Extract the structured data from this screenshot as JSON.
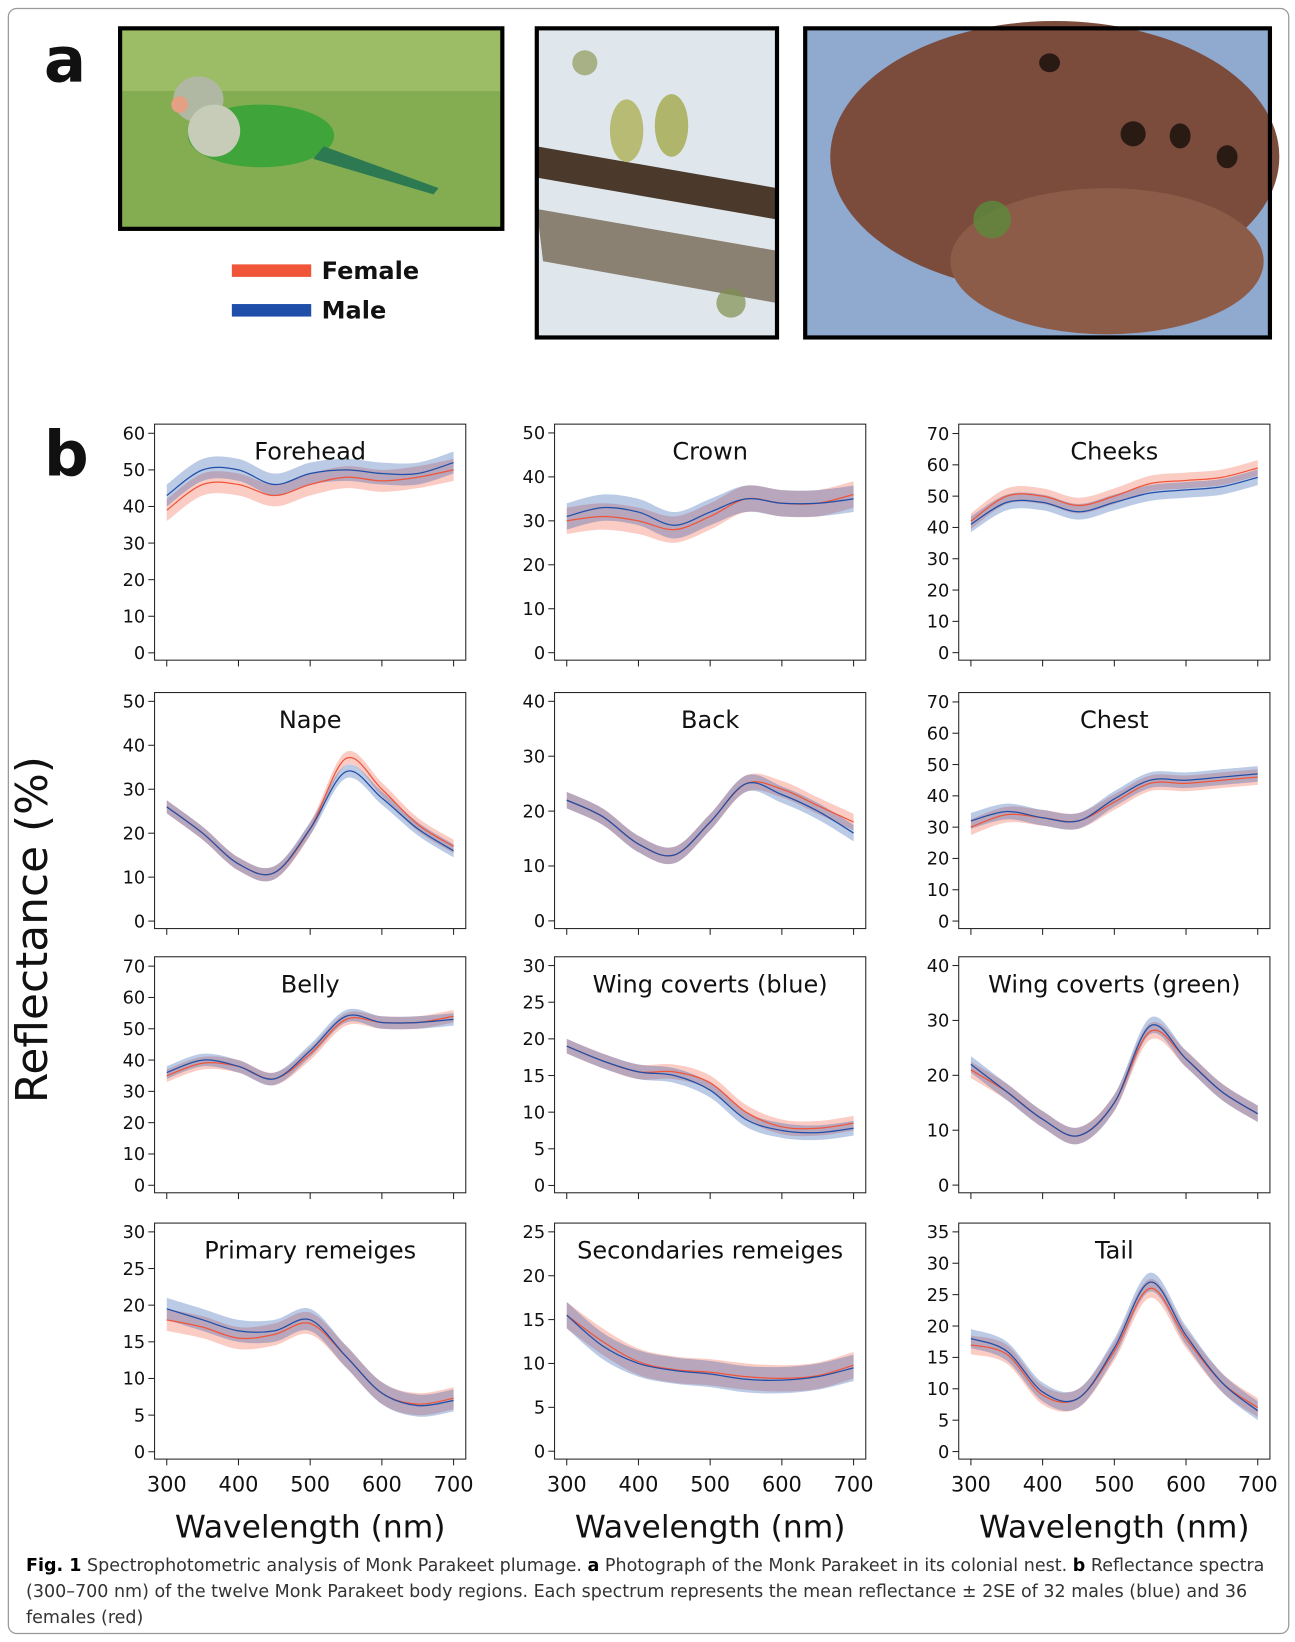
{
  "panel_labels": [
    "a",
    "b"
  ],
  "legend": [
    {
      "name": "Female",
      "color": "#f0553a"
    },
    {
      "name": "Male",
      "color": "#1f4fa8"
    }
  ],
  "y_label": "Reflectance (%)",
  "x_label": "Wavelength (nm)",
  "chart_data": [
    {
      "type": "line",
      "title": "Forehead",
      "x": [
        300,
        350,
        400,
        450,
        500,
        550,
        600,
        650,
        700
      ],
      "xlim": [
        283,
        717
      ],
      "xticks": [
        300,
        400,
        500,
        600,
        700
      ],
      "ylim": [
        -2,
        62.5
      ],
      "yticks": [
        0,
        10,
        20,
        30,
        40,
        50,
        60
      ],
      "series": [
        {
          "values": [
            39,
            46,
            46,
            43,
            46,
            48,
            47,
            48,
            50
          ],
          "errors": [
            3,
            3,
            3,
            3,
            3,
            3,
            3,
            3,
            3
          ]
        },
        {
          "values": [
            43,
            50,
            50,
            46,
            49,
            50,
            49,
            49,
            52
          ],
          "errors": [
            3,
            3,
            3,
            3,
            3,
            3,
            3,
            3,
            3
          ]
        }
      ]
    },
    {
      "type": "line",
      "title": "Crown",
      "x": [
        300,
        350,
        400,
        450,
        500,
        550,
        600,
        650,
        700
      ],
      "xlim": [
        283,
        717
      ],
      "xticks": [
        300,
        400,
        500,
        600,
        700
      ],
      "ylim": [
        -1.7,
        52
      ],
      "yticks": [
        0,
        10,
        20,
        30,
        40,
        50
      ],
      "series": [
        {
          "values": [
            30,
            31,
            30,
            28,
            31,
            35,
            34,
            34,
            36
          ],
          "errors": [
            3,
            3,
            3,
            3,
            3,
            3,
            3,
            3,
            3
          ]
        },
        {
          "values": [
            31,
            33,
            32,
            29,
            32,
            35,
            34,
            34,
            35
          ],
          "errors": [
            3,
            3,
            3,
            3,
            3,
            3,
            3,
            3,
            3
          ]
        }
      ]
    },
    {
      "type": "line",
      "title": "Cheeks",
      "x": [
        300,
        350,
        400,
        450,
        500,
        550,
        600,
        650,
        700
      ],
      "xlim": [
        283,
        717
      ],
      "xticks": [
        300,
        400,
        500,
        600,
        700
      ],
      "ylim": [
        -2.4,
        73
      ],
      "yticks": [
        0,
        10,
        20,
        30,
        40,
        50,
        60,
        70
      ],
      "series": [
        {
          "values": [
            42,
            50,
            50,
            47,
            50,
            54,
            55,
            56,
            59
          ],
          "errors": [
            2.5,
            2.5,
            2.5,
            2.5,
            2.5,
            2.5,
            2.5,
            2.5,
            2.5
          ]
        },
        {
          "values": [
            41,
            48,
            48,
            45,
            48,
            51,
            52,
            53,
            56
          ],
          "errors": [
            2.5,
            2.5,
            2.5,
            2.5,
            2.5,
            2.5,
            2.5,
            2.5,
            2.5
          ]
        }
      ]
    },
    {
      "type": "line",
      "title": "Nape",
      "x": [
        300,
        350,
        400,
        450,
        500,
        550,
        600,
        650,
        700
      ],
      "xlim": [
        283,
        717
      ],
      "xticks": [
        300,
        400,
        500,
        600,
        700
      ],
      "ylim": [
        -1.7,
        52
      ],
      "yticks": [
        0,
        10,
        20,
        30,
        40,
        50
      ],
      "series": [
        {
          "values": [
            26,
            20,
            13,
            11,
            21,
            37,
            30,
            22,
            17
          ],
          "errors": [
            1.5,
            1.5,
            1.5,
            1.5,
            1.5,
            1.5,
            1.5,
            1.5,
            1.5
          ]
        },
        {
          "values": [
            26,
            20,
            13,
            11,
            21,
            34,
            28,
            21,
            16
          ],
          "errors": [
            1.5,
            1.5,
            1.5,
            1.5,
            1.5,
            1.5,
            1.5,
            1.5,
            1.5
          ]
        }
      ]
    },
    {
      "type": "line",
      "title": "Back",
      "x": [
        300,
        350,
        400,
        450,
        500,
        550,
        600,
        650,
        700
      ],
      "xlim": [
        283,
        717
      ],
      "xticks": [
        300,
        400,
        500,
        600,
        700
      ],
      "ylim": [
        -1.4,
        41.6
      ],
      "yticks": [
        0,
        10,
        20,
        30,
        40
      ],
      "series": [
        {
          "values": [
            22,
            19,
            14,
            12,
            18,
            25,
            24,
            21,
            18
          ],
          "errors": [
            1.5,
            1.5,
            1.5,
            1.5,
            1.5,
            1.5,
            1.5,
            1.5,
            1.5
          ]
        },
        {
          "values": [
            22,
            19,
            14,
            12,
            18,
            25,
            23,
            20,
            16
          ],
          "errors": [
            1.5,
            1.5,
            1.5,
            1.5,
            1.5,
            1.5,
            1.5,
            1.5,
            1.5
          ]
        }
      ]
    },
    {
      "type": "line",
      "title": "Chest",
      "x": [
        300,
        350,
        400,
        450,
        500,
        550,
        600,
        650,
        700
      ],
      "xlim": [
        283,
        717
      ],
      "xticks": [
        300,
        400,
        500,
        600,
        700
      ],
      "ylim": [
        -2.4,
        73
      ],
      "yticks": [
        0,
        10,
        20,
        30,
        40,
        50,
        60,
        70
      ],
      "series": [
        {
          "values": [
            30,
            34,
            33,
            32,
            38,
            44,
            44,
            45,
            46
          ],
          "errors": [
            2.5,
            2.5,
            2.5,
            2.5,
            2.5,
            2.5,
            2.5,
            2.5,
            2.5
          ]
        },
        {
          "values": [
            32,
            35,
            33,
            32,
            39,
            45,
            45,
            46,
            47
          ],
          "errors": [
            2.5,
            2.5,
            2.5,
            2.5,
            2.5,
            2.5,
            2.5,
            2.5,
            2.5
          ]
        }
      ]
    },
    {
      "type": "line",
      "title": "Belly",
      "x": [
        300,
        350,
        400,
        450,
        500,
        550,
        600,
        650,
        700
      ],
      "xlim": [
        283,
        717
      ],
      "xticks": [
        300,
        400,
        500,
        600,
        700
      ],
      "ylim": [
        -2.4,
        73
      ],
      "yticks": [
        0,
        10,
        20,
        30,
        40,
        50,
        60,
        70
      ],
      "series": [
        {
          "values": [
            35,
            39,
            38,
            34,
            42,
            53,
            52,
            52,
            54
          ],
          "errors": [
            2,
            2,
            2,
            2,
            2,
            2,
            2,
            2,
            2
          ]
        },
        {
          "values": [
            36,
            40,
            38,
            34,
            43,
            54,
            52,
            52,
            53
          ],
          "errors": [
            2,
            2,
            2,
            2,
            2,
            2,
            2,
            2,
            2
          ]
        }
      ]
    },
    {
      "type": "line",
      "title": "Wing coverts (blue)",
      "x": [
        300,
        350,
        400,
        450,
        500,
        550,
        600,
        650,
        700
      ],
      "xlim": [
        283,
        717
      ],
      "xticks": [
        300,
        400,
        500,
        600,
        700
      ],
      "ylim": [
        -1,
        31.2
      ],
      "yticks": [
        0,
        5,
        10,
        15,
        20,
        25,
        30
      ],
      "series": [
        {
          "values": [
            19,
            17,
            15.5,
            15.5,
            14,
            10,
            8,
            7.8,
            8.5
          ],
          "errors": [
            1,
            1,
            1,
            1,
            1,
            1,
            1,
            1,
            1
          ]
        },
        {
          "values": [
            19,
            17,
            15.5,
            15,
            13,
            9,
            7.5,
            7.2,
            7.8
          ],
          "errors": [
            1,
            1,
            1,
            1,
            1,
            1,
            1,
            1,
            1
          ]
        }
      ]
    },
    {
      "type": "line",
      "title": "Wing coverts (green)",
      "x": [
        300,
        350,
        400,
        450,
        500,
        550,
        600,
        650,
        700
      ],
      "xlim": [
        283,
        717
      ],
      "xticks": [
        300,
        400,
        500,
        600,
        700
      ],
      "ylim": [
        -1.4,
        41.6
      ],
      "yticks": [
        0,
        10,
        20,
        30,
        40
      ],
      "series": [
        {
          "values": [
            21,
            17,
            12,
            9,
            15,
            28,
            23,
            17,
            13
          ],
          "errors": [
            1.5,
            1.5,
            1.5,
            1.5,
            1.5,
            1.5,
            1.5,
            1.5,
            1.5
          ]
        },
        {
          "values": [
            22,
            17,
            12,
            9,
            15,
            29,
            23,
            17,
            13
          ],
          "errors": [
            1.5,
            1.5,
            1.5,
            1.5,
            1.5,
            1.5,
            1.5,
            1.5,
            1.5
          ]
        }
      ]
    },
    {
      "type": "line",
      "title": "Primary remeiges",
      "x": [
        300,
        350,
        400,
        450,
        500,
        550,
        600,
        650,
        700
      ],
      "xlim": [
        283,
        717
      ],
      "xticks": [
        300,
        400,
        500,
        600,
        700
      ],
      "ylim": [
        -1,
        31.2
      ],
      "yticks": [
        0,
        5,
        10,
        15,
        20,
        25,
        30
      ],
      "series": [
        {
          "values": [
            18,
            17,
            15.5,
            16,
            17.5,
            13,
            8,
            6.5,
            7.3
          ],
          "errors": [
            1.5,
            1.5,
            1.5,
            1.5,
            1.5,
            1.5,
            1.5,
            1.5,
            1.5
          ]
        },
        {
          "values": [
            19.5,
            18,
            16.5,
            16.5,
            18,
            13,
            8,
            6.3,
            7
          ],
          "errors": [
            1.5,
            1.5,
            1.5,
            1.5,
            1.5,
            1.5,
            1.5,
            1.5,
            1.5
          ]
        }
      ]
    },
    {
      "type": "line",
      "title": "Secondaries remeiges",
      "x": [
        300,
        350,
        400,
        450,
        500,
        550,
        600,
        650,
        700
      ],
      "xlim": [
        283,
        717
      ],
      "xticks": [
        300,
        400,
        500,
        600,
        700
      ],
      "ylim": [
        -0.9,
        26
      ],
      "yticks": [
        0,
        5,
        10,
        15,
        20,
        25
      ],
      "series": [
        {
          "values": [
            15.5,
            12.5,
            10.2,
            9.3,
            9,
            8.5,
            8.3,
            8.6,
            9.8
          ],
          "errors": [
            1.5,
            1.5,
            1.5,
            1.5,
            1.5,
            1.5,
            1.5,
            1.5,
            1.5
          ]
        },
        {
          "values": [
            15.5,
            12,
            10,
            9.2,
            8.8,
            8.2,
            8.1,
            8.5,
            9.5
          ],
          "errors": [
            1.5,
            1.5,
            1.5,
            1.5,
            1.5,
            1.5,
            1.5,
            1.5,
            1.5
          ]
        }
      ]
    },
    {
      "type": "line",
      "title": "Tail",
      "x": [
        300,
        350,
        400,
        450,
        500,
        550,
        600,
        650,
        700
      ],
      "xlim": [
        283,
        717
      ],
      "xticks": [
        300,
        400,
        500,
        600,
        700
      ],
      "ylim": [
        -1.2,
        36.4
      ],
      "yticks": [
        0,
        5,
        10,
        15,
        20,
        25,
        30,
        35
      ],
      "series": [
        {
          "values": [
            17,
            15.5,
            9,
            8.5,
            16,
            26,
            18,
            11,
            7
          ],
          "errors": [
            1.5,
            1.5,
            1.5,
            1.5,
            1.5,
            1.5,
            1.5,
            1.5,
            1.5
          ]
        },
        {
          "values": [
            18,
            16,
            9.5,
            8.5,
            16.5,
            27,
            18.5,
            11,
            6.5
          ],
          "errors": [
            1.5,
            1.5,
            1.5,
            1.5,
            1.5,
            1.5,
            1.5,
            1.5,
            1.5
          ]
        }
      ]
    }
  ],
  "caption": [
    {
      "text": "Fig. 1",
      "bold": true
    },
    {
      "text": "Spectrophotometric analysis of Monk Parakeet plumage.",
      "bold": false
    },
    {
      "text": "a",
      "bold": true
    },
    {
      "text": "Photograph of the Monk Parakeet in its colonial nest.",
      "bold": false
    },
    {
      "text": "b",
      "bold": true
    },
    {
      "text": "Reflectance spectra (300–700 nm) of the twelve Monk Parakeet body regions. Each spectrum represents the mean reflectance ± 2SE of 32 males (blue) and 36 females (red)",
      "bold": false
    }
  ]
}
